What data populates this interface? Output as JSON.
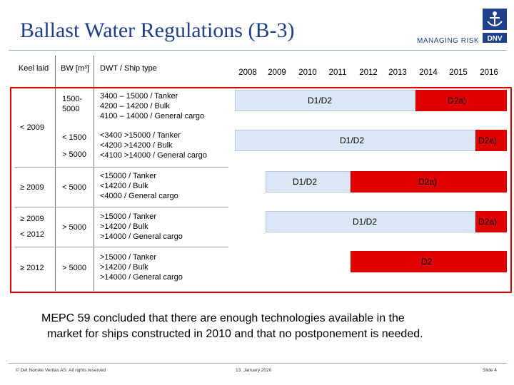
{
  "header": {
    "title": "Ballast Water Regulations (B-3)",
    "brand_text": "MANAGING RISK",
    "logo_text": "DNV"
  },
  "table": {
    "col_keel": "Keel laid",
    "col_bw": "BW [m³]",
    "col_dwt": "DWT / Ship type",
    "years": [
      "2008",
      "2009",
      "2010",
      "2011",
      "2012",
      "2013",
      "2014",
      "2015",
      "2016"
    ],
    "keel_under_2009": "< 2009",
    "rows": [
      {
        "keel": "",
        "bw": "1500- 5000",
        "dwt": [
          "3400 – 15000 / Tanker",
          "4200 – 14200 / Bulk",
          "4100 – 14000 / General cargo"
        ],
        "blue_label": "D1/D2",
        "red_label": "D2a)"
      },
      {
        "keel": "",
        "bw_1": "< 1500",
        "bw_2": "> 5000",
        "dwt": [
          "<3400   >15000 / Tanker",
          "<4200   >14200 / Bulk",
          "<4100   >14000 / General cargo"
        ],
        "blue_label": "D1/D2",
        "red_label": "D2a)"
      },
      {
        "keel": "≥ 2009",
        "bw": "< 5000",
        "dwt": [
          "<15000 / Tanker",
          "<14200 / Bulk",
          "<4000 / General cargo"
        ],
        "blue_label": "D1/D2",
        "red_label": "D2a)"
      },
      {
        "keel_1": "≥ 2009",
        "keel_2": "< 2012",
        "bw": "> 5000",
        "dwt": [
          ">15000 / Tanker",
          ">14200 / Bulk",
          ">14000 / General cargo"
        ],
        "blue_label": "D1/D2",
        "red_label": "D2a)"
      },
      {
        "keel": "≥ 2012",
        "bw": "> 5000",
        "dwt": [
          ">15000 / Tanker",
          ">14200 / Bulk",
          ">14000 / General cargo"
        ],
        "red_label": "D2"
      }
    ]
  },
  "note": {
    "line1": "MEPC 59 concluded that there are enough technologies available in the",
    "line2": "market for ships constructed in 2010 and that no postponement is needed."
  },
  "footer": {
    "copyright": "© Det Norske Veritas AS. All rights reserved",
    "date": "13. January 2020",
    "slide": "Slide 4"
  },
  "colors": {
    "title": "#1f3f88",
    "red": "#e00000",
    "blue_fill": "#dbe7f4"
  }
}
